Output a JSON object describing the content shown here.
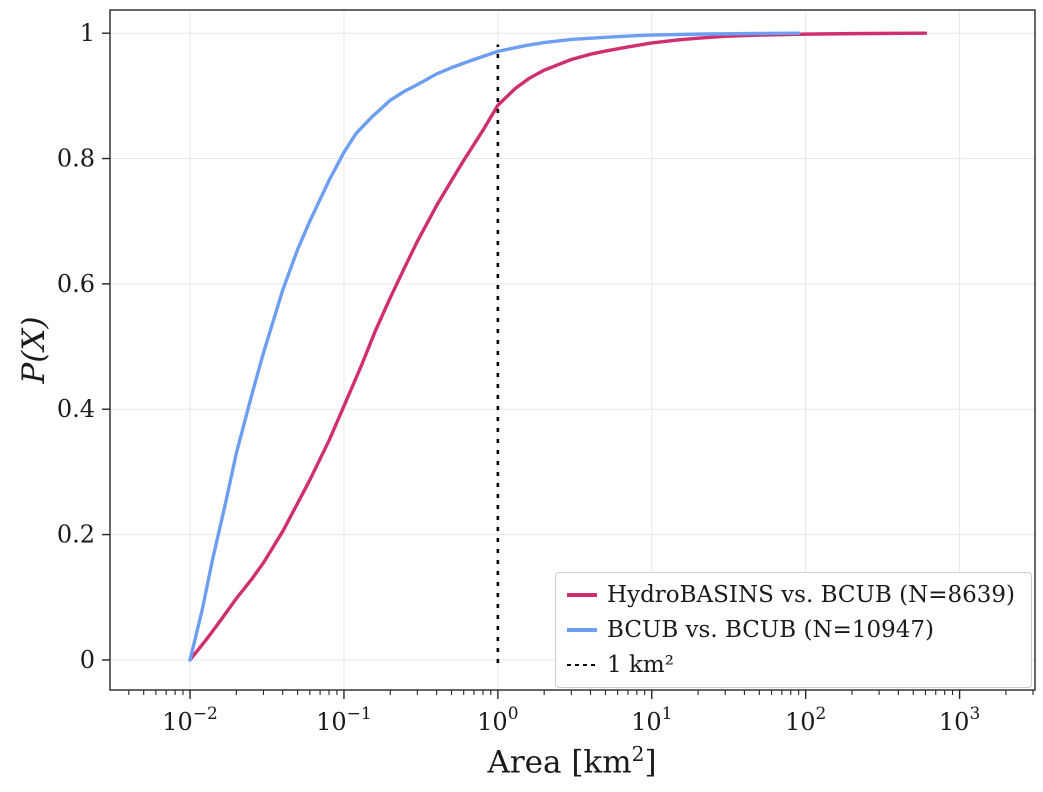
{
  "labels": {
    "xlabel_main": "Area [km",
    "xlabel_sup": "2",
    "xlabel_close": "]",
    "ylabel": "P(X)"
  },
  "colors": {
    "pink": "#cf2f6f",
    "blue": "#6d9ef2",
    "vline": "#000000",
    "text": "#1a1a1a",
    "spine": "#262626",
    "grid": "#e7e7e7",
    "legend_border": "#cccccc",
    "background": "#ffffff"
  },
  "chart_data": {
    "type": "line",
    "title": "",
    "xlabel": "Area [km²]",
    "ylabel": "P(X)",
    "xscale": "log",
    "xlim_log": [
      -2.52,
      3.49
    ],
    "ylim": [
      -0.048,
      1.037
    ],
    "xticks_exp": [
      -2,
      -1,
      0,
      1,
      2,
      3
    ],
    "yticks": [
      0,
      0.2,
      0.4,
      0.6,
      0.8,
      1
    ],
    "ytick_labels": [
      "0",
      "0.2",
      "0.4",
      "0.6",
      "0.8",
      "1"
    ],
    "grid": true,
    "legend_position": "lower right",
    "vline": {
      "x": 1,
      "label": "1 km²",
      "style": "dashed",
      "color": "#000000",
      "y_bottom": -0.005,
      "y_top": 0.982
    },
    "series": [
      {
        "name": "HydroBASINS vs. BCUB (N=8639)",
        "color": "#cf2f6f",
        "points": [
          [
            0.01,
            0
          ],
          [
            0.013,
            0.035
          ],
          [
            0.016,
            0.065
          ],
          [
            0.02,
            0.098
          ],
          [
            0.025,
            0.128
          ],
          [
            0.03,
            0.155
          ],
          [
            0.04,
            0.205
          ],
          [
            0.05,
            0.25
          ],
          [
            0.06,
            0.287
          ],
          [
            0.08,
            0.35
          ],
          [
            0.1,
            0.405
          ],
          [
            0.13,
            0.47
          ],
          [
            0.16,
            0.525
          ],
          [
            0.2,
            0.578
          ],
          [
            0.25,
            0.628
          ],
          [
            0.3,
            0.668
          ],
          [
            0.4,
            0.725
          ],
          [
            0.5,
            0.765
          ],
          [
            0.6,
            0.797
          ],
          [
            0.8,
            0.845
          ],
          [
            1,
            0.885
          ],
          [
            1.3,
            0.912
          ],
          [
            1.6,
            0.928
          ],
          [
            2,
            0.941
          ],
          [
            3,
            0.958
          ],
          [
            4,
            0.9665
          ],
          [
            5,
            0.9715
          ],
          [
            7,
            0.978
          ],
          [
            10,
            0.9845
          ],
          [
            15,
            0.9895
          ],
          [
            20,
            0.992
          ],
          [
            30,
            0.995
          ],
          [
            50,
            0.997
          ],
          [
            100,
            0.9985
          ],
          [
            200,
            0.9993
          ],
          [
            400,
            0.9998
          ],
          [
            600,
            1
          ]
        ]
      },
      {
        "name": "BCUB vs. BCUB (N=10947)",
        "color": "#6d9ef2",
        "points": [
          [
            0.01,
            0
          ],
          [
            0.012,
            0.08
          ],
          [
            0.014,
            0.16
          ],
          [
            0.017,
            0.25
          ],
          [
            0.02,
            0.33
          ],
          [
            0.025,
            0.42
          ],
          [
            0.03,
            0.49
          ],
          [
            0.04,
            0.59
          ],
          [
            0.05,
            0.655
          ],
          [
            0.06,
            0.7
          ],
          [
            0.08,
            0.765
          ],
          [
            0.1,
            0.81
          ],
          [
            0.12,
            0.84
          ],
          [
            0.15,
            0.865
          ],
          [
            0.2,
            0.893
          ],
          [
            0.25,
            0.908
          ],
          [
            0.3,
            0.918
          ],
          [
            0.4,
            0.935
          ],
          [
            0.5,
            0.945
          ],
          [
            0.7,
            0.958
          ],
          [
            1,
            0.971
          ],
          [
            1.5,
            0.98
          ],
          [
            2,
            0.985
          ],
          [
            3,
            0.99
          ],
          [
            5,
            0.9935
          ],
          [
            7,
            0.9955
          ],
          [
            10,
            0.997
          ],
          [
            20,
            0.9985
          ],
          [
            50,
            0.9995
          ],
          [
            90,
            1
          ]
        ]
      }
    ]
  }
}
